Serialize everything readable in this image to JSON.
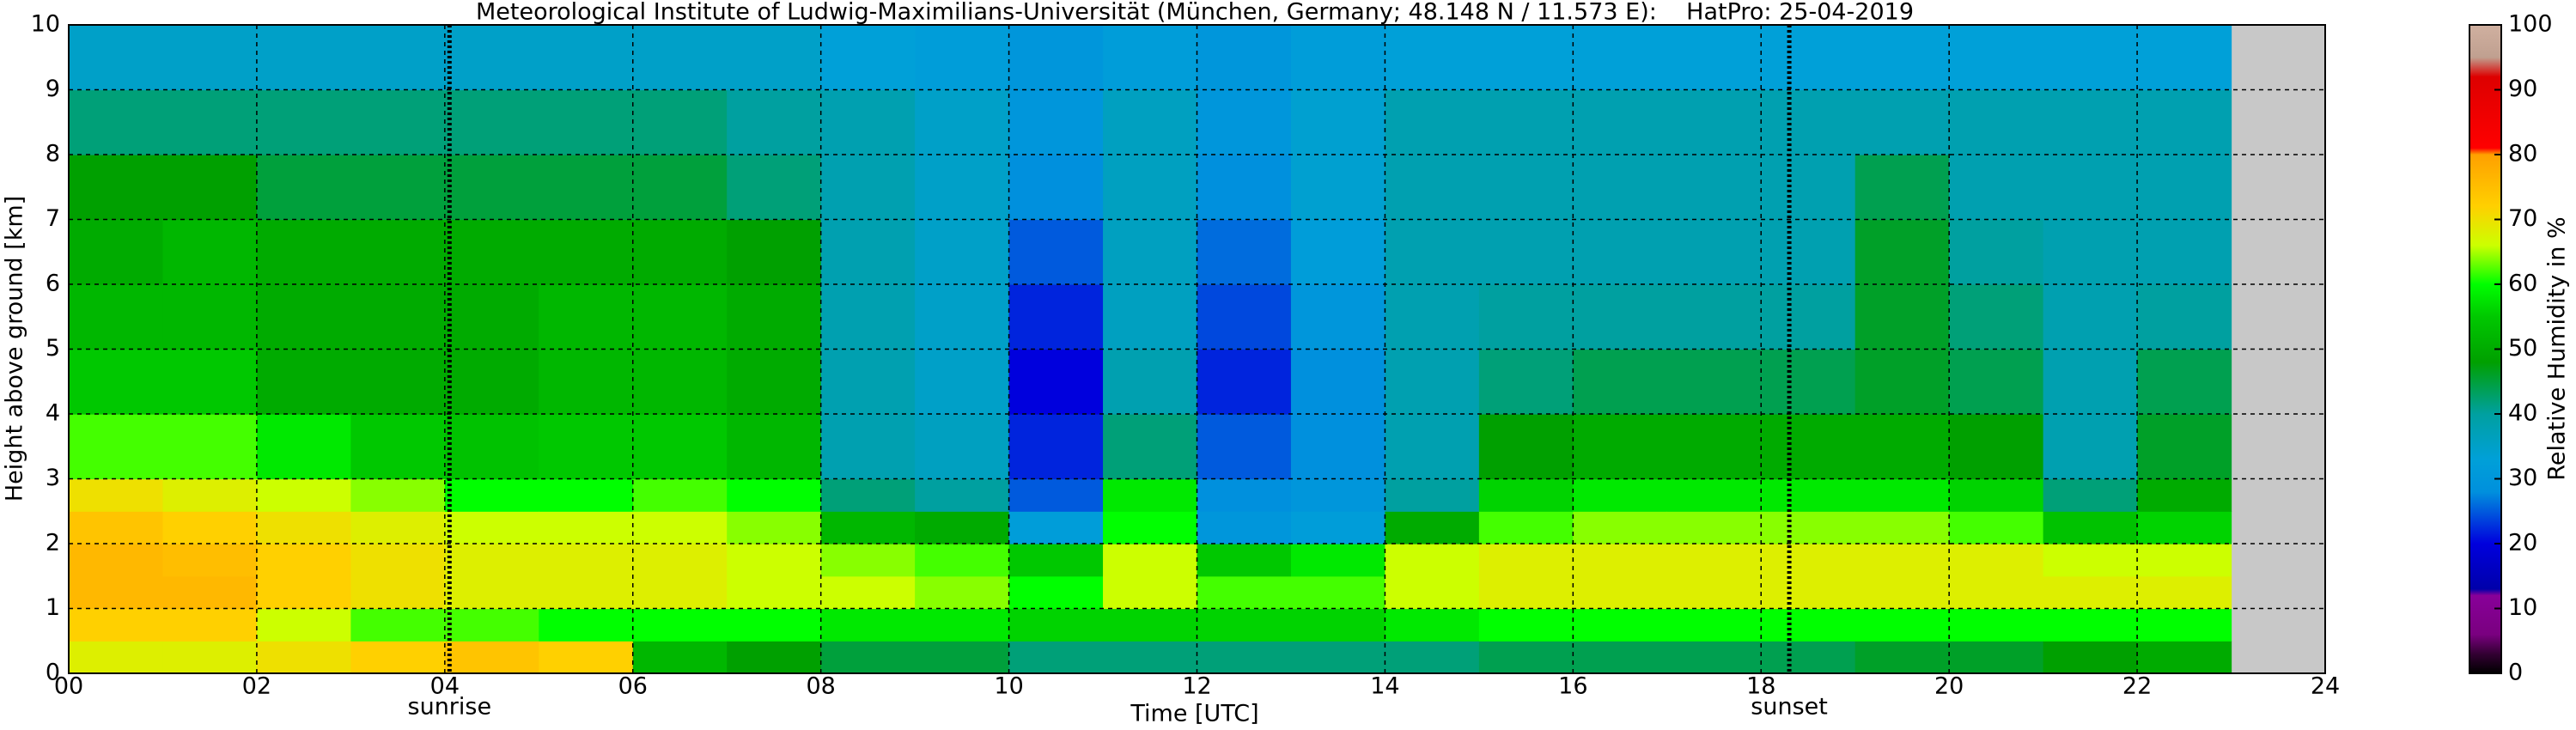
{
  "chart_data": {
    "type": "heatmap",
    "title": "Meteorological Institute of Ludwig-Maximilians-Universität (München, Germany; 48.148 N / 11.573 E):    HatPro: 25-04-2019",
    "x_label": "Time [UTC]",
    "y_label": "Height above ground [km]",
    "colorbar_label": "Relative Humidity in %",
    "xlim": [
      0,
      24
    ],
    "ylim": [
      0,
      10
    ],
    "xticks": [
      {
        "value": 0,
        "label": "00"
      },
      {
        "value": 2,
        "label": "02"
      },
      {
        "value": 4,
        "label": "04"
      },
      {
        "value": 6,
        "label": "06"
      },
      {
        "value": 8,
        "label": "08"
      },
      {
        "value": 10,
        "label": "10"
      },
      {
        "value": 12,
        "label": "12"
      },
      {
        "value": 14,
        "label": "14"
      },
      {
        "value": 16,
        "label": "16"
      },
      {
        "value": 18,
        "label": "18"
      },
      {
        "value": 20,
        "label": "20"
      },
      {
        "value": 22,
        "label": "22"
      },
      {
        "value": 24,
        "label": "24"
      }
    ],
    "yticks": [
      0,
      1,
      2,
      3,
      4,
      5,
      6,
      7,
      8,
      9,
      10
    ],
    "grid": true,
    "x_bins": [
      0,
      1,
      2,
      3,
      4,
      5,
      6,
      7,
      8,
      9,
      10,
      11,
      12,
      13,
      14,
      15,
      16,
      17,
      18,
      19,
      20,
      21,
      22,
      23
    ],
    "y_bins": [
      0,
      0.5,
      1,
      1.5,
      2,
      2.5,
      3,
      4,
      5,
      6,
      7,
      8,
      9,
      10
    ],
    "z": [
      [
        68,
        72,
        76,
        76,
        74,
        70,
        62,
        55,
        52,
        50,
        48,
        42,
        35
      ],
      [
        68,
        72,
        76,
        75,
        72,
        68,
        62,
        55,
        52,
        52,
        48,
        42,
        35
      ],
      [
        70,
        66,
        72,
        72,
        70,
        66,
        58,
        50,
        50,
        50,
        45,
        42,
        35
      ],
      [
        72,
        62,
        70,
        70,
        68,
        64,
        55,
        50,
        50,
        50,
        45,
        42,
        35
      ],
      [
        74,
        62,
        68,
        68,
        66,
        60,
        54,
        50,
        50,
        50,
        45,
        42,
        35
      ],
      [
        72,
        60,
        68,
        68,
        66,
        60,
        55,
        52,
        52,
        50,
        45,
        42,
        35
      ],
      [
        52,
        60,
        68,
        68,
        66,
        62,
        55,
        52,
        52,
        50,
        45,
        42,
        35
      ],
      [
        48,
        60,
        66,
        66,
        64,
        60,
        52,
        50,
        50,
        48,
        42,
        40,
        35
      ],
      [
        45,
        58,
        66,
        64,
        52,
        42,
        38,
        38,
        38,
        38,
        38,
        38,
        33
      ],
      [
        45,
        58,
        64,
        62,
        50,
        40,
        36,
        35,
        35,
        35,
        35,
        35,
        32
      ],
      [
        42,
        56,
        60,
        55,
        32,
        25,
        22,
        20,
        22,
        25,
        28,
        30,
        30
      ],
      [
        42,
        56,
        66,
        66,
        60,
        58,
        42,
        38,
        36,
        36,
        36,
        36,
        32
      ],
      [
        42,
        56,
        62,
        55,
        30,
        28,
        25,
        22,
        24,
        26,
        28,
        30,
        30
      ],
      [
        42,
        56,
        62,
        58,
        32,
        30,
        28,
        28,
        30,
        32,
        34,
        34,
        32
      ],
      [
        42,
        58,
        66,
        66,
        50,
        40,
        38,
        38,
        38,
        38,
        38,
        38,
        33
      ],
      [
        44,
        60,
        68,
        68,
        62,
        56,
        48,
        42,
        40,
        38,
        38,
        38,
        33
      ],
      [
        44,
        60,
        68,
        68,
        64,
        58,
        50,
        44,
        40,
        38,
        38,
        38,
        33
      ],
      [
        44,
        60,
        68,
        68,
        64,
        58,
        50,
        44,
        40,
        38,
        38,
        38,
        33
      ],
      [
        44,
        60,
        68,
        68,
        64,
        58,
        50,
        44,
        40,
        38,
        38,
        38,
        33
      ],
      [
        46,
        60,
        68,
        68,
        64,
        58,
        50,
        46,
        46,
        46,
        44,
        38,
        33
      ],
      [
        46,
        60,
        68,
        68,
        62,
        56,
        48,
        44,
        42,
        40,
        38,
        38,
        33
      ],
      [
        48,
        60,
        68,
        66,
        54,
        42,
        38,
        38,
        38,
        38,
        38,
        38,
        33
      ],
      [
        50,
        60,
        68,
        66,
        56,
        50,
        46,
        44,
        40,
        38,
        38,
        38,
        33
      ]
    ],
    "colorscale": [
      {
        "value": 0,
        "color": "#000000"
      },
      {
        "value": 3,
        "color": "#330033"
      },
      {
        "value": 6,
        "color": "#7a0080"
      },
      {
        "value": 12,
        "color": "#880099"
      },
      {
        "value": 13,
        "color": "#0000aa"
      },
      {
        "value": 20,
        "color": "#0000dd"
      },
      {
        "value": 28,
        "color": "#0090dd"
      },
      {
        "value": 33,
        "color": "#00a0d8"
      },
      {
        "value": 40,
        "color": "#00a0a0"
      },
      {
        "value": 48,
        "color": "#00a000"
      },
      {
        "value": 55,
        "color": "#00c800"
      },
      {
        "value": 60,
        "color": "#00ff00"
      },
      {
        "value": 66,
        "color": "#ccff00"
      },
      {
        "value": 72,
        "color": "#ffd000"
      },
      {
        "value": 80,
        "color": "#ffa000"
      },
      {
        "value": 81,
        "color": "#ff0000"
      },
      {
        "value": 92,
        "color": "#dd0000"
      },
      {
        "value": 95,
        "color": "#c0a090"
      },
      {
        "value": 100,
        "color": "#d0b0a0"
      }
    ],
    "colorbar_lim": [
      0,
      100
    ],
    "colorbar_ticks": [
      0,
      10,
      20,
      30,
      40,
      50,
      60,
      70,
      80,
      90,
      100
    ],
    "annotations": [
      {
        "text": "sunrise",
        "x": 4.05
      },
      {
        "text": "sunset",
        "x": 18.3
      }
    ]
  }
}
